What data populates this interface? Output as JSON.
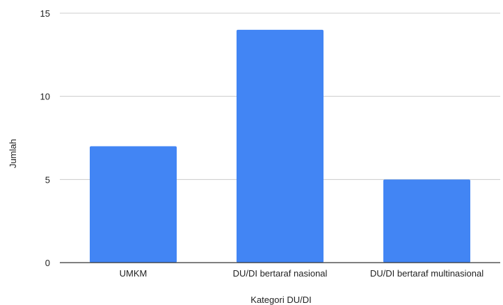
{
  "chart_data": {
    "type": "bar",
    "title": "",
    "xlabel": "Kategori DU/DI",
    "ylabel": "Jumlah",
    "categories": [
      "UMKM",
      "DU/DI bertaraf nasional",
      "DU/DI bertaraf multinasional"
    ],
    "values": [
      7,
      14,
      5
    ],
    "ylim": [
      0,
      15
    ],
    "yticks": [
      "0",
      "5",
      "10",
      "15"
    ],
    "grid": true,
    "legend": "none",
    "colors": {
      "bar": "#4285f4",
      "grid": "#cccccc",
      "axis": "#333333",
      "text": "#222222"
    }
  }
}
